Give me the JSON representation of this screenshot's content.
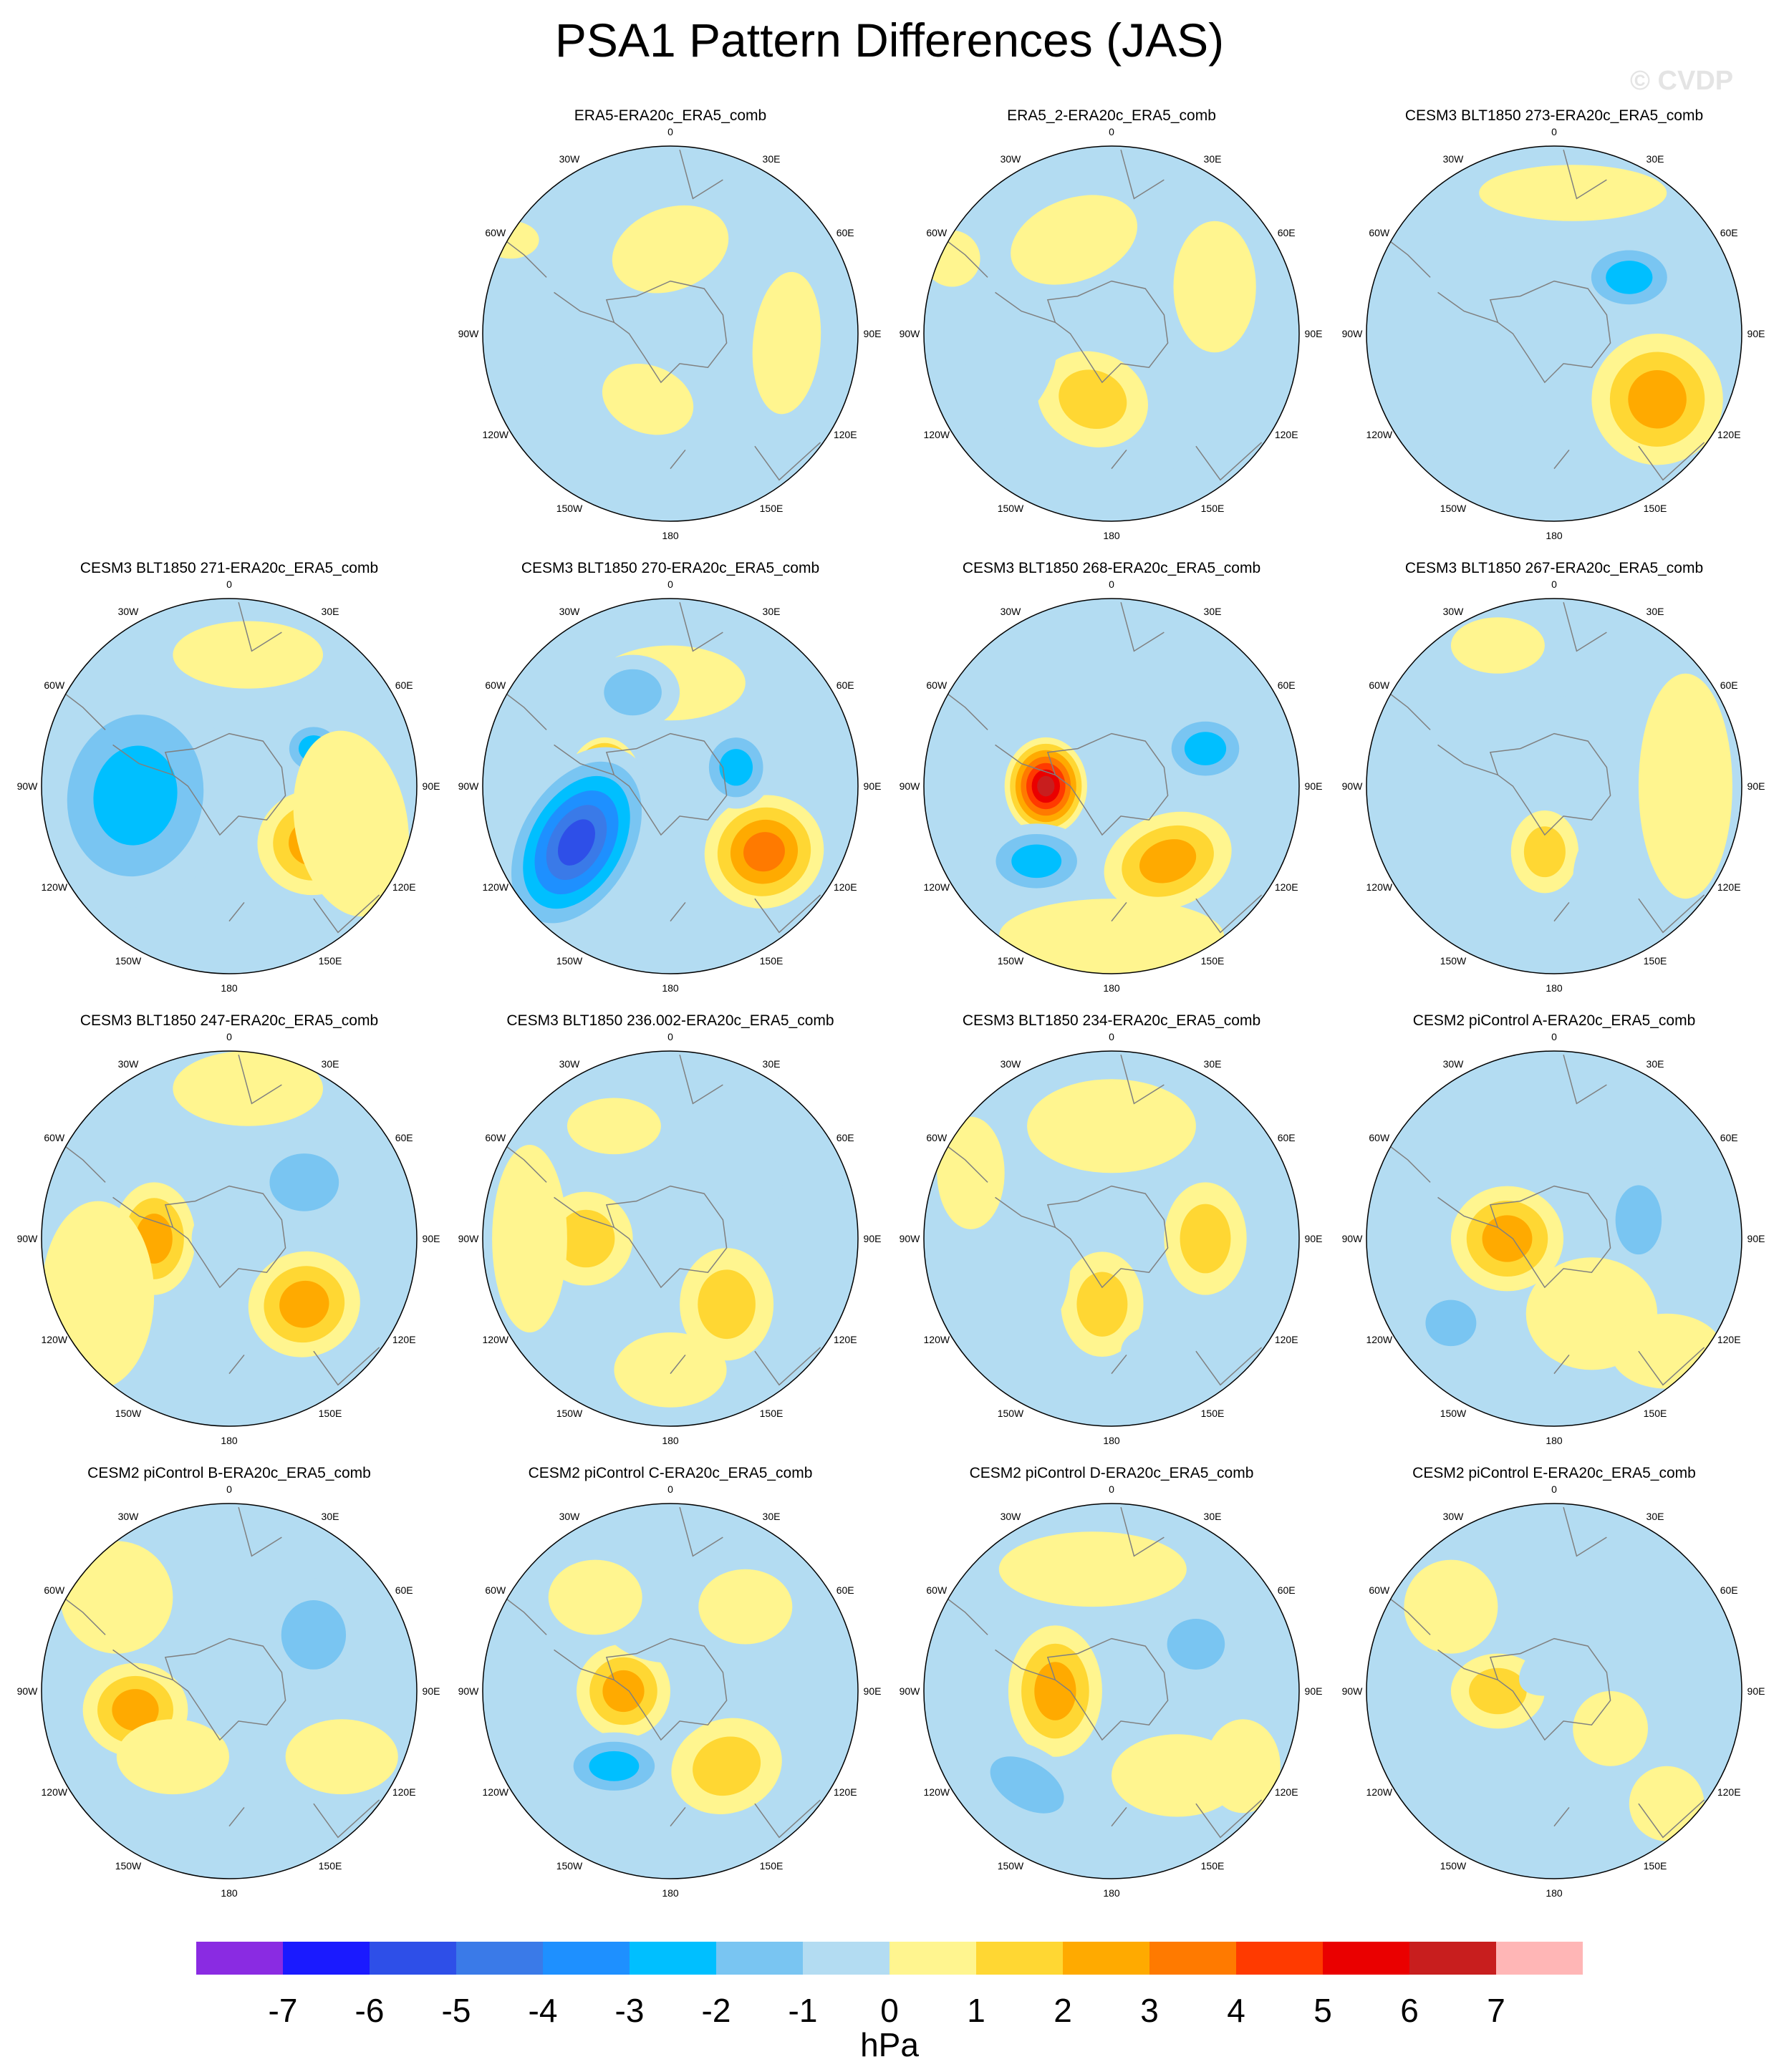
{
  "title": "PSA1 Pattern Differences (JAS)",
  "watermark": "© CVDP",
  "lon_labels": [
    "0",
    "30E",
    "60E",
    "90E",
    "120E",
    "150E",
    "180",
    "150W",
    "120W",
    "90W",
    "60W",
    "30W"
  ],
  "panels": [
    {
      "title": "ERA5-ERA20c_ERA5_comb",
      "row": 0,
      "col": 1
    },
    {
      "title": "ERA5_2-ERA20c_ERA5_comb",
      "row": 0,
      "col": 2
    },
    {
      "title": "CESM3 BLT1850 273-ERA20c_ERA5_comb",
      "row": 0,
      "col": 3
    },
    {
      "title": "CESM3 BLT1850 271-ERA20c_ERA5_comb",
      "row": 1,
      "col": 0
    },
    {
      "title": "CESM3 BLT1850 270-ERA20c_ERA5_comb",
      "row": 1,
      "col": 1
    },
    {
      "title": "CESM3 BLT1850 268-ERA20c_ERA5_comb",
      "row": 1,
      "col": 2
    },
    {
      "title": "CESM3 BLT1850 267-ERA20c_ERA5_comb",
      "row": 1,
      "col": 3
    },
    {
      "title": "CESM3 BLT1850 247-ERA20c_ERA5_comb",
      "row": 2,
      "col": 0
    },
    {
      "title": "CESM3 BLT1850 236.002-ERA20c_ERA5_comb",
      "row": 2,
      "col": 1
    },
    {
      "title": "CESM3 BLT1850 234-ERA20c_ERA5_comb",
      "row": 2,
      "col": 2
    },
    {
      "title": "CESM2 piControl A-ERA20c_ERA5_comb",
      "row": 2,
      "col": 3
    },
    {
      "title": "CESM2 piControl B-ERA20c_ERA5_comb",
      "row": 3,
      "col": 0
    },
    {
      "title": "CESM2 piControl C-ERA20c_ERA5_comb",
      "row": 3,
      "col": 1
    },
    {
      "title": "CESM2 piControl D-ERA20c_ERA5_comb",
      "row": 3,
      "col": 2
    },
    {
      "title": "CESM2 piControl E-ERA20c_ERA5_comb",
      "row": 3,
      "col": 3
    }
  ],
  "colorbar": {
    "unit": "hPa",
    "tick_labels": [
      "-7",
      "-6",
      "-5",
      "-4",
      "-3",
      "-2",
      "-1",
      "0",
      "1",
      "2",
      "3",
      "4",
      "5",
      "6",
      "7"
    ],
    "colors": [
      "#8a2be2",
      "#1a1aff",
      "#2e4fe8",
      "#3a7ae8",
      "#1e90ff",
      "#00bfff",
      "#79c5f2",
      "#b3dcf2",
      "#fff58f",
      "#ffd733",
      "#ffaa00",
      "#ff7a00",
      "#ff3a00",
      "#ea0000",
      "#c81e1e",
      "#ffb6b6"
    ]
  },
  "land_color": "#fff58f",
  "ocean_color": "#b3dcf2",
  "coast_color": "#808080"
}
